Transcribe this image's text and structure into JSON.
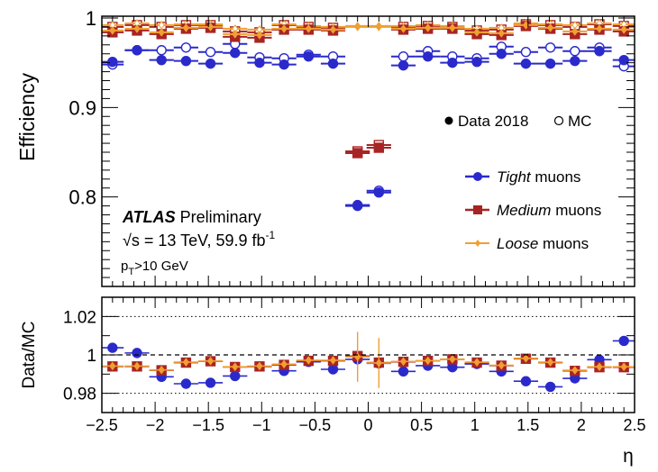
{
  "chart_data": [
    {
      "type": "scatter",
      "panel": "efficiency",
      "ylabel": "Efficiency",
      "xlim": [
        -2.5,
        2.5
      ],
      "ylim": [
        0.7,
        1.002
      ],
      "yticks": [
        "0.8",
        "0.9",
        "1"
      ],
      "grid": false,
      "legend_placement": "right",
      "legend": {
        "data_label": "Data 2018",
        "mc_label": "MC",
        "entries": [
          {
            "italic": "Tight",
            "rest": " muons"
          },
          {
            "italic": "Medium",
            "rest": " muons"
          },
          {
            "italic": "Loose",
            "rest": " muons"
          }
        ]
      },
      "annotation": {
        "atlas": "ATLAS",
        "preliminary": " Preliminary",
        "energy": "√s = 13 TeV, 59.9 fb",
        "energy_sup": "-1",
        "pt_main": "p",
        "pt_sub": "T",
        "pt_rest": ">10 GeV"
      },
      "x": [
        -2.4,
        -2.17,
        -1.94,
        -1.71,
        -1.48,
        -1.25,
        -1.02,
        -0.79,
        -0.56,
        -0.33,
        -0.1,
        0.1,
        0.33,
        0.56,
        0.79,
        1.02,
        1.25,
        1.48,
        1.71,
        1.94,
        2.17,
        2.4
      ],
      "series": [
        {
          "name": "Tight muons, Data 2018",
          "color": "#2a2acc",
          "values": [
            0.951,
            0.964,
            0.953,
            0.952,
            0.949,
            0.961,
            0.95,
            0.948,
            0.957,
            0.949,
            0.79,
            0.805,
            0.947,
            0.957,
            0.95,
            0.951,
            0.96,
            0.949,
            0.949,
            0.952,
            0.963,
            0.953
          ]
        },
        {
          "name": "Tight muons, MC",
          "color": "#2a2acc",
          "values": [
            0.948,
            0.964,
            0.964,
            0.967,
            0.962,
            0.971,
            0.956,
            0.955,
            0.959,
            0.957,
            0.791,
            0.807,
            0.957,
            0.963,
            0.957,
            0.955,
            0.968,
            0.962,
            0.967,
            0.963,
            0.967,
            0.946
          ]
        },
        {
          "name": "Medium muons, Data 2018",
          "color": "#a82424",
          "values": [
            0.984,
            0.986,
            0.982,
            0.988,
            0.989,
            0.979,
            0.978,
            0.987,
            0.987,
            0.986,
            0.849,
            0.855,
            0.987,
            0.988,
            0.988,
            0.982,
            0.981,
            0.991,
            0.988,
            0.982,
            0.987,
            0.985
          ]
        },
        {
          "name": "Medium muons, MC",
          "color": "#a82424",
          "values": [
            0.99,
            0.992,
            0.99,
            0.992,
            0.992,
            0.985,
            0.984,
            0.992,
            0.99,
            0.989,
            0.851,
            0.858,
            0.99,
            0.991,
            0.99,
            0.986,
            0.987,
            0.993,
            0.992,
            0.99,
            0.993,
            0.991
          ]
        },
        {
          "name": "Loose muons, Data 2018",
          "color": "#f0a030",
          "values": [
            0.986,
            0.988,
            0.984,
            0.989,
            0.99,
            0.982,
            0.981,
            0.988,
            0.988,
            0.987,
            0.99,
            0.99,
            0.988,
            0.989,
            0.989,
            0.984,
            0.983,
            0.992,
            0.989,
            0.985,
            0.988,
            0.987
          ]
        },
        {
          "name": "Loose muons, MC",
          "color": "#f0a030",
          "values": [
            0.992,
            0.994,
            0.992,
            0.993,
            0.993,
            0.988,
            0.987,
            0.993,
            0.991,
            0.99,
            0.991,
            0.991,
            0.991,
            0.992,
            0.991,
            0.988,
            0.989,
            0.994,
            0.993,
            0.992,
            0.994,
            0.993
          ]
        }
      ]
    },
    {
      "type": "scatter",
      "panel": "ratio",
      "ylabel": "Data/MC",
      "xlabel": "η",
      "xlim": [
        -2.5,
        2.5
      ],
      "ylim": [
        0.97,
        1.03
      ],
      "yticks": [
        "0.98",
        "1",
        "1.02"
      ],
      "xticks": [
        "−2.5",
        "−2",
        "−1.5",
        "−1",
        "−0.5",
        "0",
        "0.5",
        "1",
        "1.5",
        "2",
        "2.5"
      ],
      "reference_lines": [
        0.98,
        1.0,
        1.02
      ],
      "x": [
        -2.4,
        -2.17,
        -1.94,
        -1.71,
        -1.48,
        -1.25,
        -1.02,
        -0.79,
        -0.56,
        -0.33,
        -0.1,
        0.1,
        0.33,
        0.56,
        0.79,
        1.02,
        1.25,
        1.48,
        1.71,
        1.94,
        2.17,
        2.4
      ],
      "series": [
        {
          "name": "Tight muons",
          "color": "#2a2acc",
          "values": [
            1.0037,
            1.001,
            0.9886,
            0.985,
            0.9855,
            0.989,
            0.994,
            0.9917,
            0.9964,
            0.9925,
            0.9977,
            0.9956,
            0.9914,
            0.9944,
            0.9936,
            0.9953,
            0.9914,
            0.9863,
            0.9834,
            0.9878,
            0.9975,
            1.0073
          ]
        },
        {
          "name": "Medium muons",
          "color": "#a82424",
          "values": [
            0.994,
            0.994,
            0.992,
            0.996,
            0.9967,
            0.9937,
            0.994,
            0.9948,
            0.9969,
            0.9969,
            0.9994,
            0.996,
            0.9964,
            0.9969,
            0.9977,
            0.996,
            0.9944,
            0.998,
            0.996,
            0.9917,
            0.9936,
            0.9936
          ]
        },
        {
          "name": "Loose muons",
          "color": "#f0a030",
          "values": [
            0.9942,
            0.9942,
            0.9922,
            0.9962,
            0.9968,
            0.9938,
            0.9942,
            0.9952,
            0.9972,
            0.9972,
            0.999,
            0.9958,
            0.9966,
            0.997,
            0.9978,
            0.9962,
            0.9946,
            0.9982,
            0.9962,
            0.992,
            0.9938,
            0.9938
          ]
        }
      ]
    }
  ]
}
